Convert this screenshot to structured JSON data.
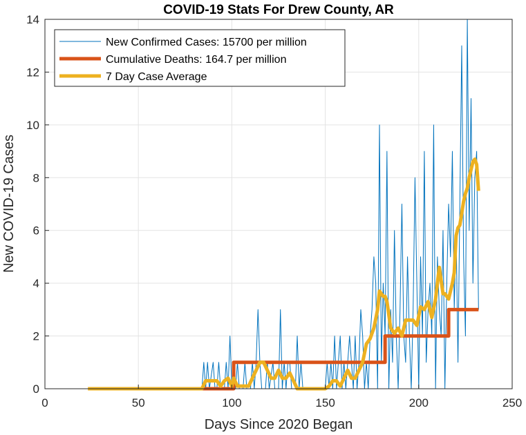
{
  "chart_data": {
    "type": "line",
    "title": "COVID-19 Stats For Drew County, AR",
    "xlabel": "Days Since 2020 Began",
    "ylabel": "New COVID-19 Cases",
    "xlim": [
      0,
      250
    ],
    "ylim": [
      0,
      14
    ],
    "xticks": [
      0,
      50,
      100,
      150,
      200,
      250
    ],
    "yticks": [
      0,
      2,
      4,
      6,
      8,
      10,
      12,
      14
    ],
    "grid": true,
    "legend_position": "top-left",
    "series": [
      {
        "name": "New Confirmed Cases: 15700 per million",
        "color": "#0072BD",
        "style": "thin",
        "points": [
          [
            23,
            0
          ],
          [
            84,
            0
          ],
          [
            85,
            1
          ],
          [
            86,
            0
          ],
          [
            87,
            1
          ],
          [
            88,
            0
          ],
          [
            90,
            1
          ],
          [
            91,
            0
          ],
          [
            92,
            0
          ],
          [
            93,
            1
          ],
          [
            94,
            0
          ],
          [
            96,
            0
          ],
          [
            97,
            1
          ],
          [
            98,
            0
          ],
          [
            99,
            2
          ],
          [
            100,
            0
          ],
          [
            102,
            0
          ],
          [
            103,
            1
          ],
          [
            104,
            0
          ],
          [
            106,
            0
          ],
          [
            107,
            1
          ],
          [
            108,
            0
          ],
          [
            110,
            0
          ],
          [
            111,
            1
          ],
          [
            112,
            0
          ],
          [
            113,
            1
          ],
          [
            114,
            3
          ],
          [
            115,
            1
          ],
          [
            116,
            0
          ],
          [
            118,
            0
          ],
          [
            119,
            1
          ],
          [
            120,
            0
          ],
          [
            122,
            1
          ],
          [
            123,
            0
          ],
          [
            125,
            0
          ],
          [
            126,
            3
          ],
          [
            127,
            0
          ],
          [
            128,
            1
          ],
          [
            129,
            0
          ],
          [
            130,
            1
          ],
          [
            131,
            1
          ],
          [
            132,
            0
          ],
          [
            134,
            0
          ],
          [
            135,
            2
          ],
          [
            136,
            0
          ],
          [
            137,
            1
          ],
          [
            138,
            0
          ],
          [
            150,
            0
          ],
          [
            151,
            1
          ],
          [
            152,
            0
          ],
          [
            153,
            1
          ],
          [
            154,
            0
          ],
          [
            155,
            2
          ],
          [
            156,
            0
          ],
          [
            157,
            1
          ],
          [
            158,
            2
          ],
          [
            159,
            0
          ],
          [
            160,
            1
          ],
          [
            161,
            0
          ],
          [
            163,
            2
          ],
          [
            164,
            1
          ],
          [
            165,
            0
          ],
          [
            166,
            2
          ],
          [
            167,
            0
          ],
          [
            168,
            1
          ],
          [
            169,
            3
          ],
          [
            170,
            2
          ],
          [
            171,
            0
          ],
          [
            172,
            1
          ],
          [
            173,
            0
          ],
          [
            174,
            2
          ],
          [
            175,
            3
          ],
          [
            176,
            5
          ],
          [
            177,
            4
          ],
          [
            178,
            0
          ],
          [
            179,
            10
          ],
          [
            180,
            1
          ],
          [
            181,
            4
          ],
          [
            182,
            2
          ],
          [
            183,
            9
          ],
          [
            184,
            0
          ],
          [
            185,
            3
          ],
          [
            186,
            1
          ],
          [
            187,
            6
          ],
          [
            188,
            2
          ],
          [
            189,
            0
          ],
          [
            190,
            3
          ],
          [
            191,
            7
          ],
          [
            192,
            2
          ],
          [
            193,
            1
          ],
          [
            194,
            5
          ],
          [
            195,
            2
          ],
          [
            196,
            0
          ],
          [
            197,
            3
          ],
          [
            198,
            8
          ],
          [
            199,
            4
          ],
          [
            200,
            0
          ],
          [
            201,
            5
          ],
          [
            202,
            2
          ],
          [
            203,
            9
          ],
          [
            204,
            1
          ],
          [
            205,
            3
          ],
          [
            206,
            4
          ],
          [
            207,
            2
          ],
          [
            208,
            10
          ],
          [
            209,
            0
          ],
          [
            210,
            5
          ],
          [
            211,
            3
          ],
          [
            212,
            2
          ],
          [
            213,
            6
          ],
          [
            214,
            0
          ],
          [
            215,
            4
          ],
          [
            216,
            7
          ],
          [
            217,
            5
          ],
          [
            218,
            9
          ],
          [
            219,
            3
          ],
          [
            220,
            6
          ],
          [
            221,
            1
          ],
          [
            222,
            7
          ],
          [
            223,
            13
          ],
          [
            224,
            5
          ],
          [
            225,
            2
          ],
          [
            226,
            14
          ],
          [
            227,
            6
          ],
          [
            228,
            11
          ],
          [
            229,
            4
          ],
          [
            230,
            8
          ],
          [
            231,
            9
          ],
          [
            232,
            3
          ]
        ]
      },
      {
        "name": "Cumulative Deaths: 164.7 per million",
        "color": "#D95319",
        "style": "thick",
        "points": [
          [
            84,
            0
          ],
          [
            101,
            0
          ],
          [
            101,
            1
          ],
          [
            182,
            1
          ],
          [
            182,
            2
          ],
          [
            216,
            2
          ],
          [
            216,
            3
          ],
          [
            232,
            3
          ]
        ]
      },
      {
        "name": "7 Day Case Average",
        "color": "#EDB120",
        "style": "thick",
        "points": [
          [
            23,
            0
          ],
          [
            84,
            0
          ],
          [
            86,
            0.3
          ],
          [
            88,
            0.3
          ],
          [
            90,
            0.3
          ],
          [
            92,
            0.3
          ],
          [
            94,
            0.1
          ],
          [
            96,
            0.3
          ],
          [
            98,
            0.4
          ],
          [
            100,
            0.1
          ],
          [
            101,
            0.4
          ],
          [
            103,
            0.1
          ],
          [
            105,
            0.1
          ],
          [
            107,
            0.1
          ],
          [
            109,
            0.1
          ],
          [
            111,
            0.4
          ],
          [
            113,
            0.7
          ],
          [
            115,
            1.0
          ],
          [
            117,
            1.0
          ],
          [
            119,
            0.7
          ],
          [
            121,
            0.4
          ],
          [
            123,
            0.4
          ],
          [
            125,
            0.7
          ],
          [
            127,
            0.4
          ],
          [
            129,
            0.4
          ],
          [
            131,
            0.6
          ],
          [
            133,
            0.3
          ],
          [
            135,
            0
          ],
          [
            140,
            0
          ],
          [
            145,
            0
          ],
          [
            150,
            0
          ],
          [
            152,
            0.1
          ],
          [
            154,
            0.3
          ],
          [
            156,
            0.3
          ],
          [
            158,
            0.1
          ],
          [
            160,
            0.4
          ],
          [
            162,
            0.7
          ],
          [
            164,
            0.4
          ],
          [
            166,
            0.4
          ],
          [
            168,
            0.7
          ],
          [
            170,
            1.0
          ],
          [
            172,
            1.7
          ],
          [
            174,
            1.9
          ],
          [
            176,
            2.3
          ],
          [
            178,
            3.0
          ],
          [
            179,
            3.7
          ],
          [
            181,
            3.5
          ],
          [
            182,
            3.5
          ],
          [
            183,
            3.3
          ],
          [
            185,
            2.3
          ],
          [
            187,
            2.1
          ],
          [
            189,
            2.3
          ],
          [
            191,
            2.0
          ],
          [
            193,
            2.6
          ],
          [
            195,
            2.6
          ],
          [
            197,
            2.6
          ],
          [
            199,
            2.4
          ],
          [
            201,
            3.1
          ],
          [
            203,
            3.0
          ],
          [
            205,
            3.3
          ],
          [
            207,
            2.7
          ],
          [
            209,
            3.4
          ],
          [
            211,
            4.6
          ],
          [
            213,
            3.6
          ],
          [
            214,
            3.6
          ],
          [
            216,
            3.4
          ],
          [
            218,
            4.0
          ],
          [
            219,
            4.4
          ],
          [
            220,
            5.8
          ],
          [
            221,
            6.1
          ],
          [
            222,
            6.2
          ],
          [
            224,
            7.1
          ],
          [
            225,
            7.4
          ],
          [
            226,
            7.6
          ],
          [
            227,
            8.0
          ],
          [
            228,
            8.3
          ],
          [
            229,
            8.6
          ],
          [
            230,
            8.7
          ],
          [
            231,
            8.5
          ],
          [
            232,
            7.5
          ]
        ]
      }
    ]
  }
}
